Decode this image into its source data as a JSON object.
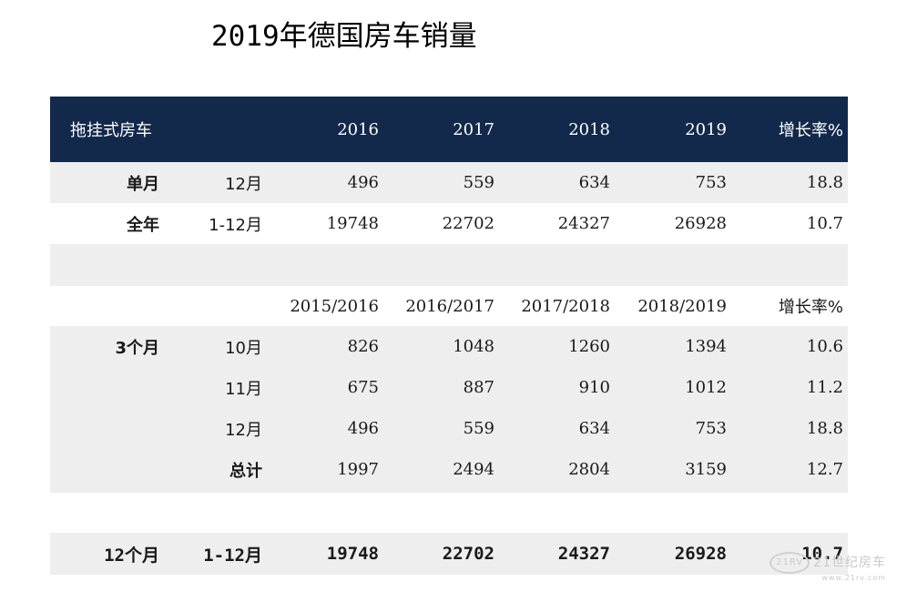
{
  "title": "2019年德国房车销量",
  "header": {
    "label": "拖挂式房车",
    "years": [
      "2016",
      "2017",
      "2018",
      "2019"
    ],
    "growth": "增长率%"
  },
  "monthly": {
    "label": "单月",
    "period": "12月",
    "values": [
      "496",
      "559",
      "634",
      "753"
    ],
    "growth": "18.8"
  },
  "annual": {
    "label": "全年",
    "period": "1-12月",
    "values": [
      "19748",
      "22702",
      "24327",
      "26928"
    ],
    "growth": "10.7"
  },
  "seasons_header": {
    "seasons": [
      "2015/2016",
      "2016/2017",
      "2017/2018",
      "2018/2019"
    ],
    "growth": "增长率%"
  },
  "three_month": {
    "label": "3个月",
    "rows": [
      {
        "period": "10月",
        "values": [
          "826",
          "1048",
          "1260",
          "1394"
        ],
        "growth": "10.6"
      },
      {
        "period": "11月",
        "values": [
          "675",
          "887",
          "910",
          "1012"
        ],
        "growth": "11.2"
      },
      {
        "period": "12月",
        "values": [
          "496",
          "559",
          "634",
          "753"
        ],
        "growth": "18.8"
      }
    ],
    "total": {
      "period": "总计",
      "values": [
        "1997",
        "2494",
        "2804",
        "3159"
      ],
      "growth": "12.7"
    }
  },
  "twelve_month": {
    "label": "12个月",
    "period": "1-12月",
    "values": [
      "19748",
      "22702",
      "24327",
      "26928"
    ],
    "growth": "10.7"
  },
  "watermark": {
    "logo": "21RV",
    "text": "21世纪房车",
    "url": "www.21rv.com"
  },
  "colors": {
    "header_bg": "#13294b",
    "band_gray": "#eeeeee"
  }
}
